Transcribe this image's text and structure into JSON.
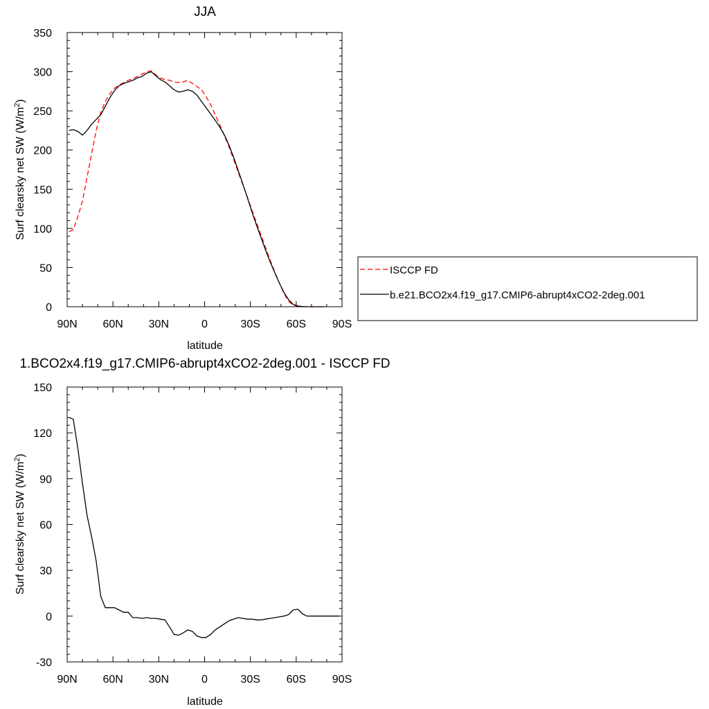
{
  "chart_data": [
    {
      "type": "line",
      "title": "JJA",
      "xlabel": "latitude",
      "ylabel": "Surf clearsky net SW (W/m²)",
      "xlim": [
        90,
        -90
      ],
      "ylim": [
        0,
        350
      ],
      "xticks": [
        {
          "value": 90,
          "label": "90N"
        },
        {
          "value": 60,
          "label": "60N"
        },
        {
          "value": 30,
          "label": "30N"
        },
        {
          "value": 0,
          "label": "0"
        },
        {
          "value": -30,
          "label": "30S"
        },
        {
          "value": -60,
          "label": "60S"
        },
        {
          "value": -90,
          "label": "90S"
        }
      ],
      "yticks": [
        0,
        50,
        100,
        150,
        200,
        250,
        300,
        350
      ],
      "legend": {
        "placement": "right"
      },
      "series": [
        {
          "name": "ISCCP FD",
          "color": "#ff0000",
          "dash": true,
          "x": [
            88.75,
            86,
            83,
            80,
            77,
            74,
            71,
            68,
            65,
            62,
            59,
            56,
            53,
            50,
            47,
            44,
            41,
            38,
            35,
            32,
            29,
            26,
            23,
            20,
            17,
            14,
            11,
            8,
            5,
            2,
            -1,
            -4,
            -7,
            -10,
            -13,
            -16,
            -19,
            -22,
            -25,
            -28,
            -31,
            -34,
            -37,
            -40,
            -43,
            -46,
            -49,
            -52,
            -55,
            -58,
            -61,
            -64,
            -67,
            -70,
            -73,
            -76,
            -79
          ],
          "y": [
            96,
            98,
            115,
            135,
            165,
            195,
            225,
            248,
            262,
            272,
            279,
            283,
            286,
            289,
            291,
            294,
            297,
            300,
            301,
            296,
            292,
            290,
            289,
            287,
            286,
            287,
            289,
            285,
            281,
            277,
            268,
            258,
            245,
            232,
            218,
            204,
            188,
            172,
            156,
            140,
            123,
            107,
            91,
            75,
            59,
            44,
            30,
            17,
            7,
            2,
            0.5,
            0,
            0,
            0,
            0,
            0,
            0
          ]
        },
        {
          "name": "b.e21.BCO2x4.f19_g17.CMIP6-abrupt4xCO2-2deg.001",
          "color": "#000000",
          "dash": false,
          "x": [
            88.75,
            86,
            83,
            80,
            77,
            74,
            71,
            68,
            65,
            62,
            59,
            56,
            53,
            50,
            47,
            44,
            41,
            38,
            35,
            32,
            29,
            26,
            23,
            20,
            17,
            14,
            11,
            8,
            5,
            2,
            -1,
            -4,
            -7,
            -10,
            -13,
            -16,
            -19,
            -22,
            -25,
            -28,
            -31,
            -34,
            -37,
            -40,
            -43,
            -46,
            -49,
            -52,
            -55,
            -58,
            -61,
            -64,
            -67,
            -70,
            -73,
            -76,
            -79
          ],
          "y": [
            225,
            226,
            224,
            219,
            225,
            233,
            239,
            245,
            256,
            267,
            276,
            282,
            285,
            287,
            289,
            292,
            294,
            298,
            300,
            295,
            290,
            287,
            282,
            277,
            274,
            275,
            277,
            275,
            270,
            262,
            254,
            246,
            238,
            229,
            219,
            206,
            191,
            174,
            157,
            139,
            121,
            104,
            88,
            72,
            57,
            43,
            30,
            18,
            9,
            3,
            1,
            0.3,
            0,
            0,
            0,
            0,
            0
          ]
        }
      ]
    },
    {
      "type": "line",
      "title": "1.BCO2x4.f19_g17.CMIP6-abrupt4xCO2-2deg.001 - ISCCP FD",
      "xlabel": "latitude",
      "ylabel": "Surf clearsky net SW (W/m²)",
      "xlim": [
        90,
        -90
      ],
      "ylim": [
        -30,
        150
      ],
      "xticks": [
        {
          "value": 90,
          "label": "90N"
        },
        {
          "value": 60,
          "label": "60N"
        },
        {
          "value": 30,
          "label": "30N"
        },
        {
          "value": 0,
          "label": "0"
        },
        {
          "value": -30,
          "label": "30S"
        },
        {
          "value": -60,
          "label": "60S"
        },
        {
          "value": -90,
          "label": "90S"
        }
      ],
      "yticks": [
        -30,
        0,
        30,
        60,
        90,
        120,
        150
      ],
      "series": [
        {
          "color": "#000000",
          "dash": false,
          "x": [
            88.75,
            86,
            83,
            80,
            77,
            74,
            71,
            68,
            65,
            62,
            59,
            56,
            53,
            50,
            47,
            44,
            41,
            38,
            35,
            32,
            29,
            26,
            23,
            20,
            17,
            14,
            11,
            8,
            5,
            2,
            -1,
            -4,
            -7,
            -10,
            -13,
            -16,
            -19,
            -22,
            -25,
            -28,
            -31,
            -34,
            -37,
            -40,
            -43,
            -46,
            -49,
            -52,
            -55,
            -58,
            -61,
            -64,
            -67,
            -70,
            -73,
            -76,
            -79,
            -82,
            -85,
            -88
          ],
          "y": [
            130,
            129,
            110,
            87,
            66,
            52,
            36,
            13,
            5.5,
            5.5,
            5.5,
            4,
            2.5,
            2.5,
            -1,
            -1,
            -1.5,
            -1,
            -1.5,
            -1.5,
            -2,
            -2.5,
            -7,
            -12,
            -12.5,
            -11,
            -9,
            -10,
            -13,
            -14,
            -14,
            -12,
            -9,
            -7,
            -5,
            -3,
            -2,
            -1,
            -1.5,
            -2,
            -2,
            -2.5,
            -2.5,
            -2,
            -1.5,
            -1,
            -0.5,
            0,
            1,
            4,
            4.5,
            1.5,
            0,
            0,
            0,
            0,
            0,
            0,
            0,
            0
          ]
        }
      ]
    }
  ]
}
